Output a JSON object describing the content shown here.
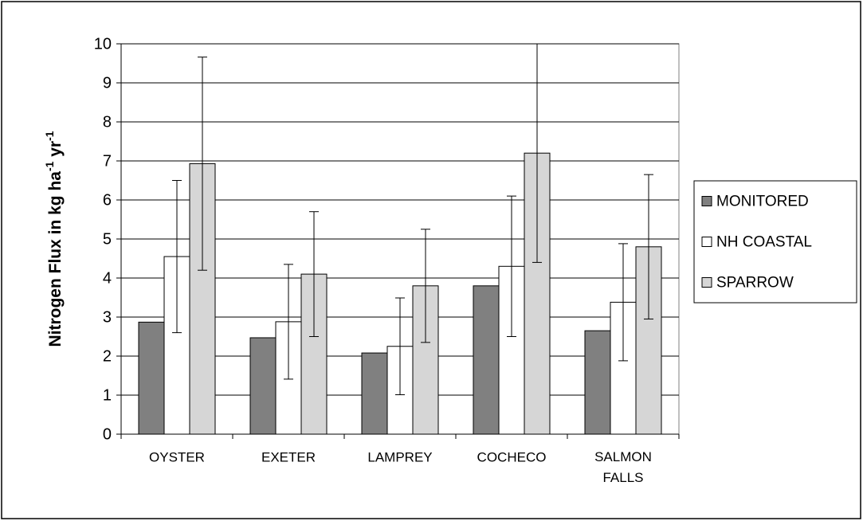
{
  "chart_data": {
    "type": "bar",
    "y_label": [
      "Nitrogen Flux in kg ha",
      "-1",
      " yr",
      "-1"
    ],
    "categories": [
      "OYSTER",
      "EXETER",
      "LAMPREY",
      "COCHECO",
      "SALMON FALLS"
    ],
    "series": [
      {
        "name": "MONITORED",
        "color": "#808080",
        "values": [
          2.87,
          2.47,
          2.08,
          3.8,
          2.65
        ]
      },
      {
        "name": "NH COASTAL",
        "color": "#ffffff",
        "values": [
          4.55,
          2.88,
          2.25,
          4.3,
          3.38
        ],
        "errors": [
          1.95,
          1.47,
          1.24,
          1.8,
          1.5
        ]
      },
      {
        "name": "SPARROW",
        "color": "#d6d6d6",
        "values": [
          6.93,
          4.1,
          3.8,
          7.2,
          4.8
        ],
        "errors": [
          2.73,
          1.6,
          1.45,
          2.8,
          1.85
        ]
      }
    ],
    "ylim": [
      0,
      10
    ],
    "yticks": [
      0,
      1,
      2,
      3,
      4,
      5,
      6,
      7,
      8,
      9,
      10
    ],
    "grid": true,
    "legend": "right"
  }
}
